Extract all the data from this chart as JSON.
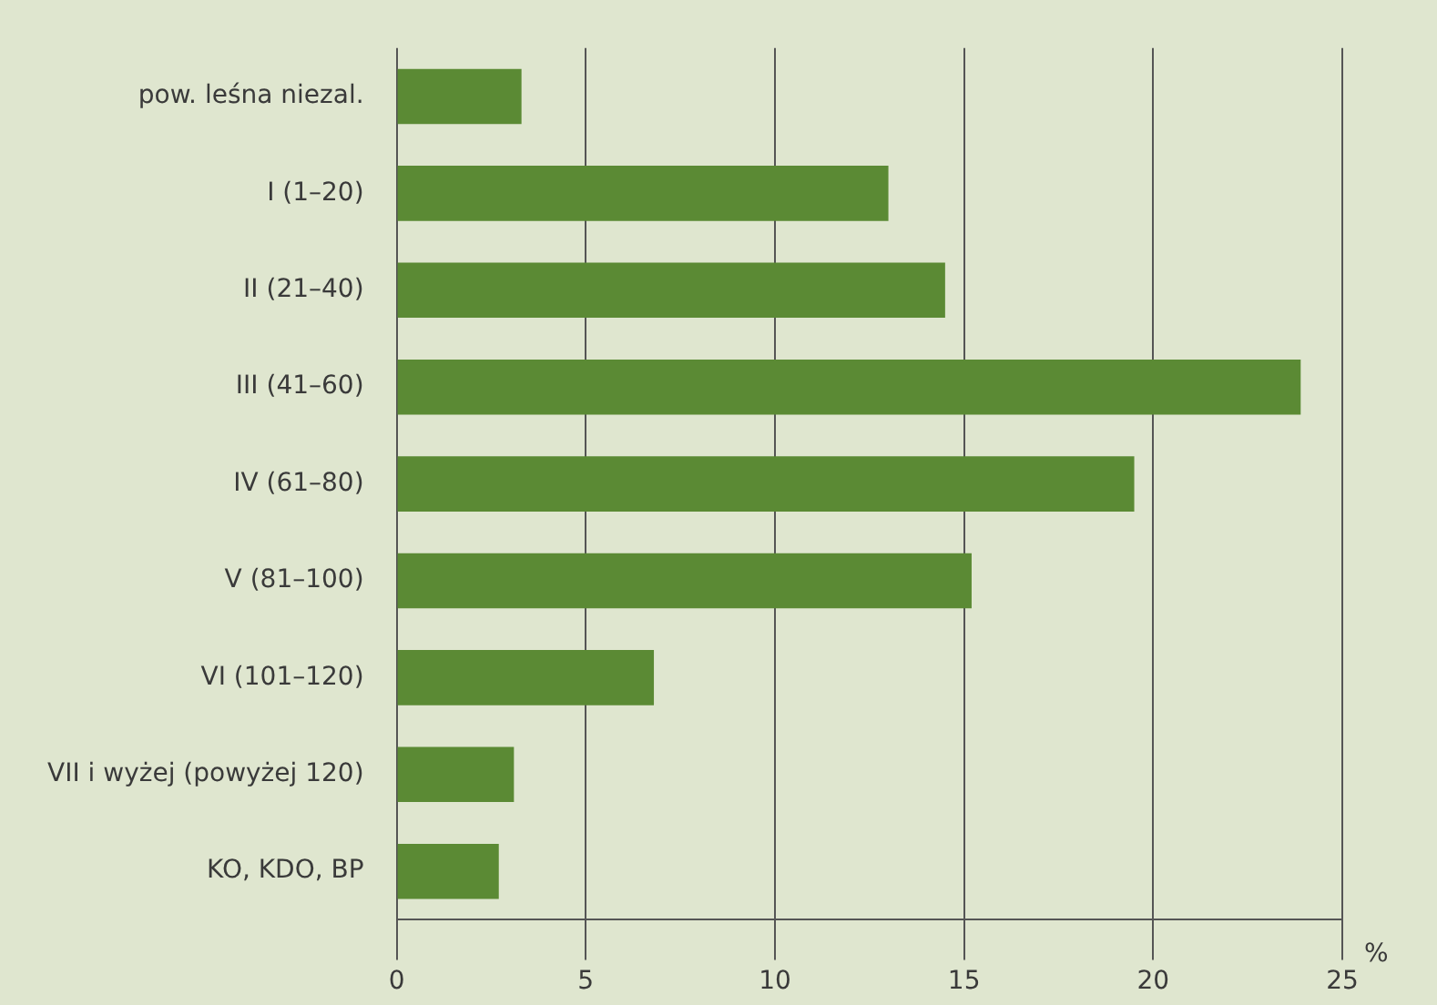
{
  "chart_data": {
    "type": "bar",
    "orientation": "horizontal",
    "xlabel": "%",
    "categories": [
      "pow. leśna niezal.",
      "I (1–20)",
      "II (21–40)",
      "III (41–60)",
      "IV (61–80)",
      "V (81–100)",
      "VI (101–120)",
      "VII i wyżej (powyżej 120)",
      "KO, KDO, BP"
    ],
    "values": [
      3.3,
      13.0,
      14.5,
      23.9,
      19.5,
      15.2,
      6.8,
      3.1,
      2.7
    ],
    "color": "#5b8a34",
    "xlim": [
      0,
      25
    ],
    "xticks": [
      0,
      5,
      10,
      15,
      20,
      25
    ],
    "grid": "x"
  }
}
